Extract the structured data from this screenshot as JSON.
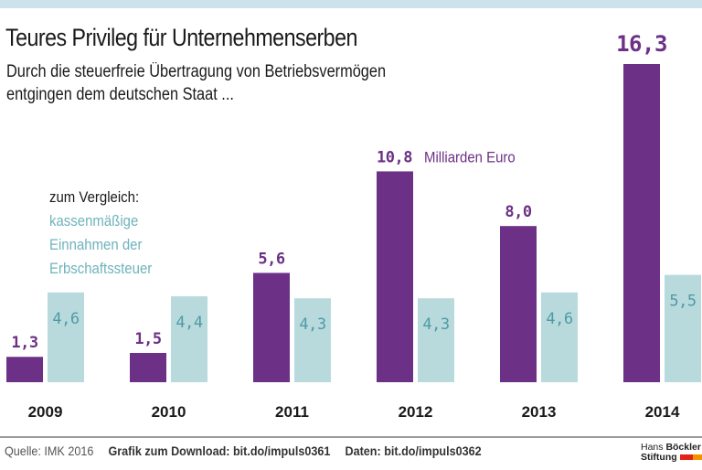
{
  "header": {
    "title": "Teures Privileg für Unternehmenserben",
    "subtitle_line1": "Durch die steuerfreie Übertragung von Betriebsvermögen",
    "subtitle_line2": "entgingen dem deutschen Staat ..."
  },
  "legend": {
    "heading": "zum Vergleich:",
    "lines": [
      "kassenmäßige",
      "Einnahmen der",
      "Erbschaftssteuer"
    ]
  },
  "colors": {
    "primary": "#6c3186",
    "secondary": "#b9dadd",
    "secondary_text": "#4e9aa5",
    "topbar": "#cde3ec"
  },
  "chart_data": {
    "type": "bar",
    "title": "Teures Privileg für Unternehmenserben",
    "subtitle": "Durch die steuerfreie Übertragung von Betriebsvermögen entgingen dem deutschen Staat ...",
    "xlabel": "",
    "ylabel": "",
    "unit": "Milliarden Euro",
    "categories": [
      "2009",
      "2010",
      "2011",
      "2012",
      "2013",
      "2014"
    ],
    "series": [
      {
        "name": "Steuerfreie Übertragung von Betriebsvermögen (entgangene Einnahmen)",
        "values": [
          1.3,
          1.5,
          5.6,
          10.8,
          8.0,
          16.3
        ],
        "labels": [
          "1,3",
          "1,5",
          "5,6",
          "10,8",
          "8,0",
          "16,3"
        ]
      },
      {
        "name": "kassenmäßige Einnahmen der Erbschaftssteuer",
        "values": [
          4.6,
          4.4,
          4.3,
          4.3,
          4.6,
          5.5
        ],
        "labels": [
          "4,6",
          "4,4",
          "4,3",
          "4,3",
          "4,6",
          "5,5"
        ]
      }
    ],
    "annotation": "Milliarden Euro",
    "annotation_category": "2012",
    "ylim": [
      0,
      16.3
    ],
    "grid": false,
    "legend_position": "left"
  },
  "footer": {
    "source": "Quelle: IMK 2016",
    "download": "Grafik zum Download: bit.do/impuls0361",
    "data": "Daten: bit.do/impuls0362"
  },
  "logo": {
    "line1_light": "Hans",
    "line1_bold": "Böckler",
    "line2": "Stiftung"
  }
}
